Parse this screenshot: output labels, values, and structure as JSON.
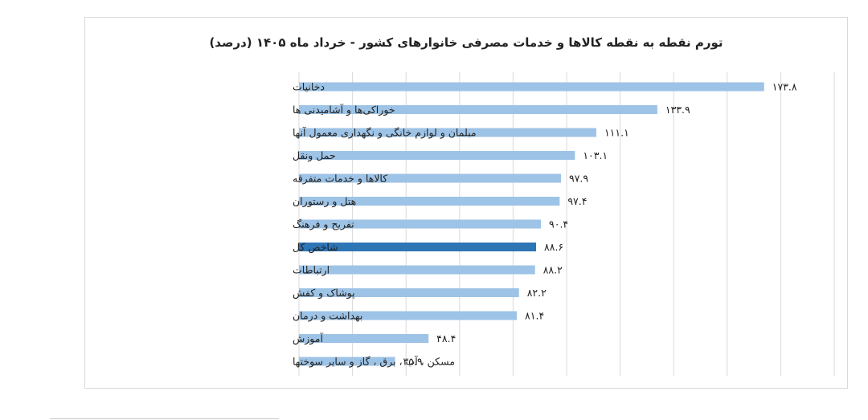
{
  "chart_data": {
    "type": "bar",
    "orientation": "horizontal",
    "title": "تورم نقطه به نقطه کالاها و خدمات مصرفی خانوارهای کشور - خرداد ماه ۱۴۰۵ (درصد)",
    "categories": [
      "دخانیات",
      "خوراکی‌ها و آشامیدنی ها",
      "مبلمان و لوازم خانگی و نگهداری معمول آنها",
      "حمل ونقل",
      "کالاها و خدمات متفرقه",
      "هتل و رستوران",
      "تفریح و فرهنگ",
      "شاخص کل",
      "ارتباطات",
      "پوشاک و کفش",
      "بهداشت و درمان",
      "آموزش",
      "مسکن ، آب ، برق ، گاز و سایر سوختها"
    ],
    "values": [
      173.8,
      133.9,
      111.1,
      103.1,
      97.9,
      97.4,
      90.4,
      88.6,
      88.2,
      82.2,
      81.4,
      48.4,
      35.9
    ],
    "value_labels": [
      "۱۷۳.۸",
      "۱۳۳.۹",
      "۱۱۱.۱",
      "۱۰۳.۱",
      "۹۷.۹",
      "۹۷.۴",
      "۹۰.۴",
      "۸۸.۶",
      "۸۸.۲",
      "۸۲.۲",
      "۸۱.۴",
      "۴۸.۴",
      "۳۵.۹"
    ],
    "highlight_index": 7,
    "xlim": [
      0,
      200
    ],
    "gridline_step": 20,
    "grid": true,
    "colors": {
      "bar": "#9dc3e6",
      "highlight": "#2e75b6",
      "grid": "#d9d9d9",
      "text": "#222222"
    }
  }
}
